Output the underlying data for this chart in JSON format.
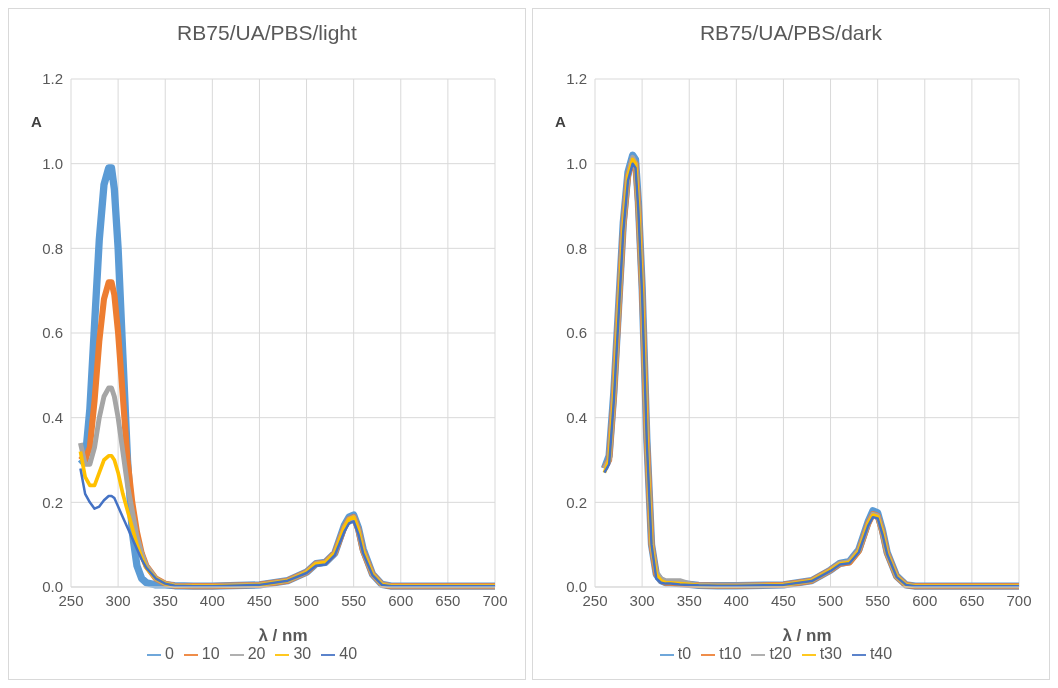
{
  "chart_data": [
    {
      "type": "line",
      "title": "RB75/UA/PBS/light",
      "xlabel": "λ / nm",
      "ylabel": "A",
      "x": [
        260,
        265,
        270,
        275,
        280,
        285,
        290,
        293,
        296,
        300,
        305,
        310,
        315,
        320,
        325,
        330,
        340,
        350,
        360,
        380,
        400,
        450,
        480,
        500,
        510,
        520,
        530,
        540,
        545,
        550,
        555,
        560,
        570,
        580,
        590,
        600,
        650,
        700
      ],
      "xlim": [
        250,
        700
      ],
      "xticks": [
        250,
        300,
        350,
        400,
        450,
        500,
        550,
        600,
        650,
        700
      ],
      "ylim": [
        0,
        1.2
      ],
      "yticks": [
        {
          "value": 0,
          "label": "0.0"
        },
        {
          "value": 0.2,
          "label": "0.2"
        },
        {
          "value": 0.4,
          "label": "0.4"
        },
        {
          "value": 0.6,
          "label": "0.6"
        },
        {
          "value": 0.8,
          "label": "0.8"
        },
        {
          "value": 1,
          "label": "1.0"
        },
        {
          "value": 1.2,
          "label": "1.2"
        }
      ],
      "grid": true,
      "legend": "bottom",
      "marker": "none",
      "line_style": "solid",
      "series": [
        {
          "name": "0",
          "color": "#5b9bd5",
          "values": [
            0.29,
            0.3,
            0.42,
            0.62,
            0.82,
            0.95,
            0.99,
            0.99,
            0.94,
            0.8,
            0.55,
            0.3,
            0.13,
            0.05,
            0.02,
            0.01,
            0.005,
            0.005,
            0.003,
            0.002,
            0.002,
            0.005,
            0.015,
            0.035,
            0.055,
            0.058,
            0.08,
            0.145,
            0.165,
            0.17,
            0.14,
            0.09,
            0.03,
            0.006,
            0.002,
            0.002,
            0.002,
            0.002
          ]
        },
        {
          "name": "10",
          "color": "#ed7d31",
          "values": [
            0.31,
            0.3,
            0.33,
            0.44,
            0.58,
            0.68,
            0.72,
            0.72,
            0.69,
            0.6,
            0.45,
            0.3,
            0.2,
            0.13,
            0.08,
            0.05,
            0.02,
            0.008,
            0.003,
            0.002,
            0.002,
            0.005,
            0.015,
            0.035,
            0.055,
            0.058,
            0.08,
            0.14,
            0.16,
            0.165,
            0.135,
            0.085,
            0.03,
            0.006,
            0.002,
            0.002,
            0.002,
            0.002
          ]
        },
        {
          "name": "20",
          "color": "#a5a5a5",
          "values": [
            0.34,
            0.29,
            0.29,
            0.33,
            0.4,
            0.45,
            0.47,
            0.47,
            0.45,
            0.4,
            0.32,
            0.24,
            0.18,
            0.12,
            0.08,
            0.05,
            0.02,
            0.008,
            0.003,
            0.002,
            0.002,
            0.005,
            0.015,
            0.035,
            0.055,
            0.058,
            0.08,
            0.14,
            0.16,
            0.165,
            0.135,
            0.085,
            0.03,
            0.006,
            0.002,
            0.002,
            0.002,
            0.002
          ]
        },
        {
          "name": "30",
          "color": "#ffc000",
          "values": [
            0.32,
            0.26,
            0.24,
            0.24,
            0.27,
            0.3,
            0.31,
            0.31,
            0.3,
            0.27,
            0.22,
            0.18,
            0.14,
            0.1,
            0.07,
            0.045,
            0.02,
            0.008,
            0.003,
            0.002,
            0.002,
            0.005,
            0.015,
            0.035,
            0.055,
            0.058,
            0.08,
            0.14,
            0.16,
            0.165,
            0.135,
            0.085,
            0.03,
            0.006,
            0.002,
            0.002,
            0.002,
            0.002
          ]
        },
        {
          "name": "40",
          "color": "#4472c4",
          "values": [
            0.28,
            0.22,
            0.2,
            0.185,
            0.19,
            0.205,
            0.215,
            0.215,
            0.21,
            0.19,
            0.165,
            0.14,
            0.115,
            0.09,
            0.065,
            0.045,
            0.02,
            0.008,
            0.003,
            0.002,
            0.002,
            0.005,
            0.015,
            0.033,
            0.05,
            0.053,
            0.075,
            0.13,
            0.15,
            0.155,
            0.125,
            0.08,
            0.028,
            0.005,
            0.002,
            0.002,
            0.002,
            0.002
          ]
        }
      ]
    },
    {
      "type": "line",
      "title": "RB75/UA/PBS/dark",
      "xlabel": "λ / nm",
      "ylabel": "A",
      "x": [
        260,
        265,
        270,
        275,
        280,
        285,
        290,
        293,
        296,
        300,
        305,
        310,
        315,
        320,
        325,
        330,
        340,
        350,
        360,
        380,
        400,
        450,
        480,
        500,
        510,
        520,
        530,
        540,
        545,
        550,
        555,
        560,
        570,
        580,
        590,
        600,
        650,
        700
      ],
      "xlim": [
        250,
        700
      ],
      "xticks": [
        250,
        300,
        350,
        400,
        450,
        500,
        550,
        600,
        650,
        700
      ],
      "ylim": [
        0,
        1.2
      ],
      "yticks": [
        {
          "value": 0,
          "label": "0.0"
        },
        {
          "value": 0.2,
          "label": "0.2"
        },
        {
          "value": 0.4,
          "label": "0.4"
        },
        {
          "value": 0.6,
          "label": "0.6"
        },
        {
          "value": 0.8,
          "label": "0.8"
        },
        {
          "value": 1,
          "label": "1.0"
        },
        {
          "value": 1.2,
          "label": "1.2"
        }
      ],
      "grid": true,
      "legend": "bottom",
      "marker": "none",
      "line_style": "solid",
      "series": [
        {
          "name": "t0",
          "color": "#5b9bd5",
          "values": [
            0.28,
            0.31,
            0.46,
            0.66,
            0.86,
            0.98,
            1.02,
            1.01,
            0.91,
            0.71,
            0.35,
            0.1,
            0.03,
            0.015,
            0.01,
            0.01,
            0.008,
            0.006,
            0.004,
            0.003,
            0.003,
            0.005,
            0.015,
            0.04,
            0.056,
            0.06,
            0.088,
            0.155,
            0.18,
            0.175,
            0.135,
            0.082,
            0.026,
            0.005,
            0.002,
            0.002,
            0.002,
            0.002
          ]
        },
        {
          "name": "t10",
          "color": "#ed7d31",
          "values": [
            0.28,
            0.3,
            0.45,
            0.65,
            0.85,
            0.97,
            1.01,
            1.0,
            0.9,
            0.7,
            0.35,
            0.1,
            0.03,
            0.015,
            0.01,
            0.01,
            0.008,
            0.006,
            0.004,
            0.003,
            0.003,
            0.005,
            0.015,
            0.04,
            0.055,
            0.058,
            0.085,
            0.15,
            0.172,
            0.168,
            0.13,
            0.08,
            0.025,
            0.005,
            0.002,
            0.002,
            0.002,
            0.002
          ]
        },
        {
          "name": "t20",
          "color": "#a5a5a5",
          "values": [
            0.28,
            0.3,
            0.45,
            0.65,
            0.85,
            0.97,
            1.015,
            1.0,
            0.9,
            0.7,
            0.35,
            0.1,
            0.035,
            0.02,
            0.015,
            0.015,
            0.015,
            0.008,
            0.004,
            0.003,
            0.003,
            0.005,
            0.015,
            0.04,
            0.056,
            0.06,
            0.086,
            0.15,
            0.172,
            0.168,
            0.13,
            0.08,
            0.025,
            0.005,
            0.002,
            0.002,
            0.002,
            0.002
          ]
        },
        {
          "name": "t30",
          "color": "#ffc000",
          "values": [
            0.27,
            0.3,
            0.45,
            0.65,
            0.85,
            0.97,
            1.01,
            1.0,
            0.9,
            0.7,
            0.35,
            0.1,
            0.03,
            0.015,
            0.01,
            0.01,
            0.008,
            0.006,
            0.004,
            0.003,
            0.003,
            0.005,
            0.015,
            0.04,
            0.055,
            0.058,
            0.085,
            0.15,
            0.17,
            0.166,
            0.13,
            0.08,
            0.025,
            0.005,
            0.002,
            0.002,
            0.002,
            0.002
          ]
        },
        {
          "name": "t40",
          "color": "#4472c4",
          "values": [
            0.27,
            0.29,
            0.44,
            0.64,
            0.84,
            0.96,
            1.0,
            0.99,
            0.89,
            0.69,
            0.34,
            0.1,
            0.02,
            0.01,
            0.008,
            0.008,
            0.006,
            0.005,
            0.004,
            0.003,
            0.003,
            0.005,
            0.014,
            0.038,
            0.053,
            0.056,
            0.082,
            0.145,
            0.165,
            0.162,
            0.125,
            0.078,
            0.024,
            0.005,
            0.002,
            0.002,
            0.002,
            0.002
          ]
        }
      ]
    }
  ]
}
